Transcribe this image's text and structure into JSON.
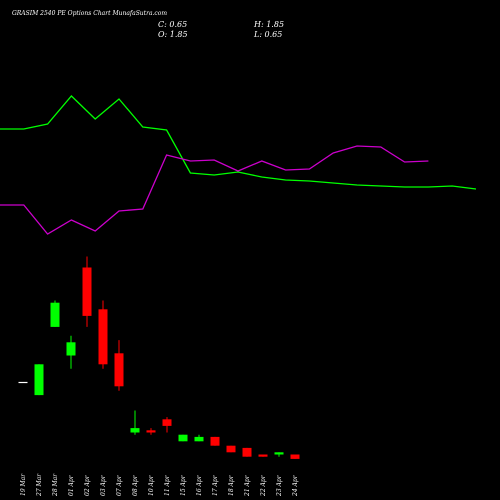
{
  "chart_data": {
    "type": "candlestick",
    "title": "GRASIM 2540 PE Options Chart MunafaSutra.com",
    "ohlc_readout": {
      "C": "C: 0.65",
      "O": "O: 1.85",
      "H": "H: 1.85",
      "L": "L: 0.65"
    },
    "candles": [
      {
        "date": "19 Mar",
        "open": 3.55,
        "high": 3.55,
        "low": 3.55,
        "close": 3.55
      },
      {
        "date": "27 Mar",
        "open": 2.95,
        "high": 4.35,
        "low": 2.95,
        "close": 4.35
      },
      {
        "date": "28 Mar",
        "open": 6.05,
        "high": 7.25,
        "low": 6.05,
        "close": 7.15
      },
      {
        "date": "01 Apr",
        "open": 4.75,
        "high": 5.65,
        "low": 4.15,
        "close": 5.35
      },
      {
        "date": "02 Apr",
        "open": 8.75,
        "high": 9.25,
        "low": 6.05,
        "close": 6.55
      },
      {
        "date": "03 Apr",
        "open": 6.85,
        "high": 7.25,
        "low": 4.15,
        "close": 4.35
      },
      {
        "date": "07 Apr",
        "open": 4.85,
        "high": 5.45,
        "low": 3.15,
        "close": 3.35
      },
      {
        "date": "08 Apr",
        "open": 1.25,
        "high": 2.25,
        "low": 1.15,
        "close": 1.45
      },
      {
        "date": "10 Apr",
        "open": 1.35,
        "high": 1.45,
        "low": 1.15,
        "close": 1.25
      },
      {
        "date": "11 Apr",
        "open": 1.85,
        "high": 1.95,
        "low": 1.25,
        "close": 1.55
      },
      {
        "date": "15 Apr",
        "open": 0.85,
        "high": 1.15,
        "low": 0.85,
        "close": 1.15
      },
      {
        "date": "16 Apr",
        "open": 0.85,
        "high": 1.15,
        "low": 0.85,
        "close": 1.05
      },
      {
        "date": "17 Apr",
        "open": 1.05,
        "high": 1.05,
        "low": 0.65,
        "close": 0.65
      },
      {
        "date": "18 Apr",
        "open": 0.65,
        "high": 0.65,
        "low": 0.35,
        "close": 0.35
      },
      {
        "date": "21 Apr",
        "open": 0.55,
        "high": 0.55,
        "low": 0.15,
        "close": 0.15
      },
      {
        "date": "22 Apr",
        "open": 0.25,
        "high": 0.25,
        "low": 0.15,
        "close": 0.15
      },
      {
        "date": "23 Apr",
        "open": 0.25,
        "high": 0.35,
        "low": 0.15,
        "close": 0.35
      },
      {
        "date": "24 Apr",
        "open": 0.25,
        "high": 0.25,
        "low": 0.05,
        "close": 0.05
      }
    ],
    "series": [
      {
        "color": "#00ff00",
        "values": [
          129,
          129,
          124,
          96,
          119,
          99,
          127,
          130,
          173,
          175,
          172,
          177,
          180,
          181,
          183,
          185,
          186,
          187,
          187,
          186,
          189
        ]
      },
      {
        "color": "#cc00cc",
        "values": [
          205,
          205,
          234,
          220,
          231,
          211,
          209,
          155,
          161,
          160,
          171,
          161,
          170,
          169,
          153,
          146,
          147,
          162,
          161
        ]
      }
    ],
    "up_color": "#00ff00",
    "down_color": "#ff0000",
    "doji_color": "#ffffff",
    "grid": false
  }
}
